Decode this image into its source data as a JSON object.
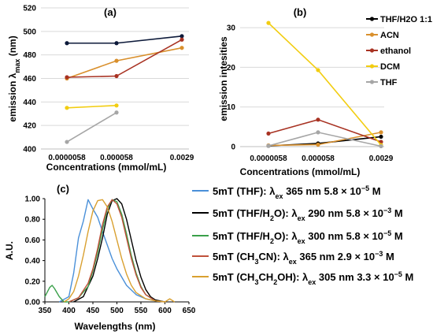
{
  "figure": {
    "panels": [
      "(a)",
      "(b)",
      "(c)"
    ]
  },
  "chart_data": [
    {
      "type": "line",
      "panel": "(a)",
      "xlabel": "Concentrations (mmol/mL)",
      "ylabel_main": "emission ",
      "ylabel_lambda": "λ",
      "ylabel_sub": "max",
      "ylabel_unit": " (nm)",
      "categories": [
        "0.0000058",
        "0.000058",
        "0.0029"
      ],
      "ylim": [
        400,
        520
      ],
      "yticks": [
        "400",
        "420",
        "440",
        "460",
        "480",
        "500",
        "520"
      ],
      "grid": "horizontal",
      "series": [
        {
          "color": "#0d1a3a",
          "values": [
            490,
            490,
            496
          ]
        },
        {
          "color": "#d9902d",
          "values": [
            460,
            475,
            486
          ]
        },
        {
          "color": "#a83222",
          "values": [
            461,
            462,
            493
          ]
        },
        {
          "color": "#f2cd11",
          "values": [
            435,
            437,
            null
          ]
        },
        {
          "color": "#a6a6a6",
          "values": [
            406,
            431,
            null
          ]
        }
      ]
    },
    {
      "type": "line",
      "panel": "(b)",
      "xlabel": "Concentrations (mmol/mL)",
      "ylabel": "emission intesities",
      "categories": [
        "0.0000058",
        "0.000058",
        "0.0029"
      ],
      "ylim": [
        0,
        35
      ],
      "yticks": [
        "0",
        "10",
        "20",
        "30"
      ],
      "grid": "horizontal",
      "legend_position": "right",
      "series": [
        {
          "name": "THF/H2O 1:1",
          "color": "#000000",
          "values": [
            0.2,
            0.8,
            2.5
          ]
        },
        {
          "name": "ACN",
          "color": "#d9902d",
          "values": [
            0.3,
            0.5,
            3.6
          ]
        },
        {
          "name": "ethanol",
          "color": "#a83222",
          "values": [
            3.3,
            6.8,
            1.2
          ]
        },
        {
          "name": "DCM",
          "color": "#f2cd11",
          "values": [
            31.2,
            19.3,
            0.4
          ]
        },
        {
          "name": "THF",
          "color": "#a6a6a6",
          "values": [
            0.2,
            3.6,
            0.1
          ]
        }
      ]
    },
    {
      "type": "line",
      "panel": "(c)",
      "xlabel": "Wavelengths (nm)",
      "ylabel": "A.U.",
      "xlim": [
        350,
        650
      ],
      "ylim": [
        0,
        1.0
      ],
      "xticks": [
        "350",
        "400",
        "450",
        "500",
        "550",
        "600",
        "650"
      ],
      "yticks": [
        "0.00",
        "0.20",
        "0.40",
        "0.60",
        "0.80",
        "1.00"
      ],
      "legend_position": "right",
      "series": [
        {
          "name": "5mT (THF): λex 365 nm 5.8 × 10−5 M",
          "legend_pre": "5mT (THF): ",
          "legend_conc": " 365 nm 5.8 × 10",
          "legend_exp": "−5",
          "legend_tail": " M",
          "color": "#4a90d9",
          "x": [
            380,
            400,
            410,
            420,
            430,
            440,
            450,
            460,
            470,
            480,
            490,
            500,
            520,
            540,
            560,
            580,
            600
          ],
          "y": [
            0.0,
            0.05,
            0.28,
            0.62,
            0.78,
            0.99,
            0.9,
            0.82,
            0.68,
            0.55,
            0.42,
            0.32,
            0.16,
            0.07,
            0.03,
            0.01,
            0.0
          ]
        },
        {
          "name": "5mT (THF/H2O): λex 290 nm 5.8 × 10−3 M",
          "legend_pre": "5mT (THF/H",
          "legend_sub": "2",
          "legend_pre2": "O): ",
          "legend_conc": " 290 nm 5.8 × 10",
          "legend_exp": "−3",
          "legend_tail": " M",
          "color": "#000000",
          "x": [
            410,
            430,
            450,
            460,
            470,
            480,
            490,
            500,
            510,
            520,
            530,
            540,
            550,
            560,
            570,
            580,
            600
          ],
          "y": [
            0.0,
            0.05,
            0.25,
            0.42,
            0.62,
            0.85,
            0.98,
            1.0,
            0.95,
            0.8,
            0.6,
            0.4,
            0.24,
            0.12,
            0.05,
            0.02,
            0.0
          ]
        },
        {
          "name": "5mT (THF/H2O): λex 300 nm 5.8 × 10−5 M",
          "legend_pre": "5mT (THF/H",
          "legend_sub": "2",
          "legend_pre2": "O): ",
          "legend_conc": " 300 nm 5.8 × 10",
          "legend_exp": "−5",
          "legend_tail": " M",
          "color": "#3aa04a",
          "x": [
            350,
            360,
            365,
            370,
            380,
            390,
            400,
            420,
            440,
            450,
            460,
            470,
            480,
            490,
            500,
            510,
            520,
            530,
            540,
            550,
            560,
            580
          ],
          "y": [
            0.05,
            0.14,
            0.16,
            0.13,
            0.05,
            0.0,
            0.0,
            0.04,
            0.15,
            0.3,
            0.48,
            0.7,
            0.9,
            0.99,
            0.97,
            0.85,
            0.66,
            0.45,
            0.28,
            0.15,
            0.07,
            0.01
          ]
        },
        {
          "name": "5mT (CH3CN): λex 365 nm 2.9 × 10−3 M",
          "legend_pre": "5mT (CH",
          "legend_sub": "3",
          "legend_pre2": "CN): ",
          "legend_conc": " 365 nm 2.9 × 10",
          "legend_exp": "−3",
          "legend_tail": " M",
          "color": "#c0503a",
          "x": [
            400,
            420,
            440,
            450,
            460,
            470,
            480,
            490,
            500,
            510,
            520,
            530,
            540,
            550,
            560,
            580,
            600
          ],
          "y": [
            0.0,
            0.04,
            0.18,
            0.32,
            0.52,
            0.75,
            0.92,
            0.99,
            0.95,
            0.82,
            0.62,
            0.42,
            0.26,
            0.14,
            0.07,
            0.01,
            0.0
          ]
        },
        {
          "name": "5mT (CH3CH2OH): λex 305 nm 3.3 × 10−5 M",
          "legend_pre": "5mT (CH",
          "legend_sub": "3",
          "legend_pre2": "CH",
          "legend_sub2": "2",
          "legend_pre3": "OH): ",
          "legend_conc": " 305 nm 3.3 × 10",
          "legend_exp": "−5",
          "legend_tail": " M",
          "color": "#d9a030",
          "x": [
            390,
            400,
            410,
            420,
            430,
            440,
            450,
            460,
            470,
            480,
            490,
            500,
            510,
            520,
            530,
            540,
            560,
            580,
            600,
            610,
            620
          ],
          "y": [
            0.0,
            0.03,
            0.1,
            0.25,
            0.45,
            0.68,
            0.88,
            0.98,
            0.99,
            0.92,
            0.78,
            0.6,
            0.42,
            0.27,
            0.16,
            0.09,
            0.03,
            0.01,
            0.0,
            0.03,
            0.0
          ]
        }
      ]
    }
  ]
}
